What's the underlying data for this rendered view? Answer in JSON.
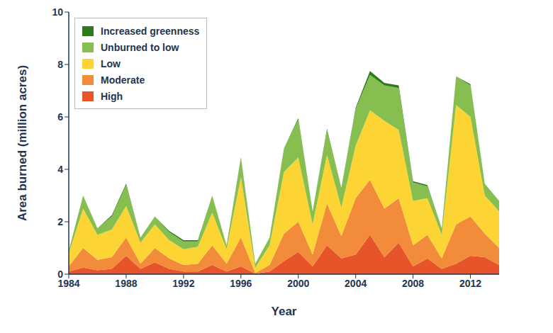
{
  "chart_data": {
    "type": "area",
    "stacked": true,
    "x_label": "Year",
    "y_label": "Area burned (million acres)",
    "x": [
      1984,
      1985,
      1986,
      1987,
      1988,
      1989,
      1990,
      1991,
      1992,
      1993,
      1994,
      1995,
      1996,
      1997,
      1998,
      1999,
      2000,
      2001,
      2002,
      2003,
      2004,
      2005,
      2006,
      2007,
      2008,
      2009,
      2010,
      2011,
      2012,
      2013,
      2014
    ],
    "xlim": [
      1984,
      2014
    ],
    "xticks": [
      1984,
      1988,
      1992,
      1996,
      2000,
      2004,
      2008,
      2012
    ],
    "ylim": [
      0,
      10
    ],
    "yticks": [
      0,
      2,
      4,
      6,
      8,
      10
    ],
    "grid": false,
    "legend": "upper left",
    "series": [
      {
        "name": "Increased greenness",
        "color": "#2f7a1f",
        "values": [
          0,
          0,
          0,
          0.05,
          0.05,
          0,
          0,
          0.05,
          0.05,
          0.05,
          0,
          0,
          0.05,
          0,
          0,
          0,
          0.05,
          0,
          0.05,
          0,
          0.05,
          0.15,
          0.1,
          0.1,
          0.05,
          0.05,
          0,
          0,
          0.05,
          0,
          0
        ]
      },
      {
        "name": "Unburned to low",
        "color": "#86bf4f",
        "values": [
          0.1,
          0.5,
          0.25,
          0.5,
          0.8,
          0.2,
          0.3,
          0.3,
          0.3,
          0.2,
          0.65,
          0.15,
          0.7,
          0.15,
          0.3,
          0.9,
          1.45,
          0.5,
          0.95,
          0.75,
          1.4,
          1.35,
          1.35,
          1.6,
          0.7,
          0.45,
          0.25,
          1.1,
          1.2,
          0.45,
          0.4
        ]
      },
      {
        "name": "Low",
        "color": "#fcd535",
        "values": [
          0.5,
          1.5,
          0.95,
          1.05,
          1.2,
          0.8,
          0.9,
          0.7,
          0.6,
          0.65,
          1.25,
          0.55,
          2.3,
          0.2,
          0.75,
          2.35,
          2.45,
          1.15,
          1.85,
          1.1,
          2.0,
          2.65,
          3.35,
          2.6,
          1.7,
          1.4,
          0.9,
          4.55,
          3.8,
          1.45,
          1.4
        ]
      },
      {
        "name": "Moderate",
        "color": "#f28c3a",
        "values": [
          0.2,
          0.75,
          0.4,
          0.45,
          0.7,
          0.2,
          0.55,
          0.4,
          0.25,
          0.3,
          0.75,
          0.3,
          1.1,
          0.03,
          0.25,
          1.05,
          1.15,
          0.45,
          1.6,
          0.85,
          2.15,
          2.1,
          1.85,
          1.7,
          0.8,
          0.9,
          0.4,
          1.5,
          1.5,
          0.9,
          0.65
        ]
      },
      {
        "name": "High",
        "color": "#e8542a",
        "values": [
          0.1,
          0.25,
          0.15,
          0.2,
          0.7,
          0.2,
          0.45,
          0.2,
          0.1,
          0.1,
          0.35,
          0.1,
          0.3,
          0.02,
          0.1,
          0.5,
          0.85,
          0.3,
          1.1,
          0.6,
          0.75,
          1.5,
          0.65,
          1.2,
          0.3,
          0.6,
          0.2,
          0.4,
          0.7,
          0.65,
          0.35
        ]
      }
    ]
  }
}
